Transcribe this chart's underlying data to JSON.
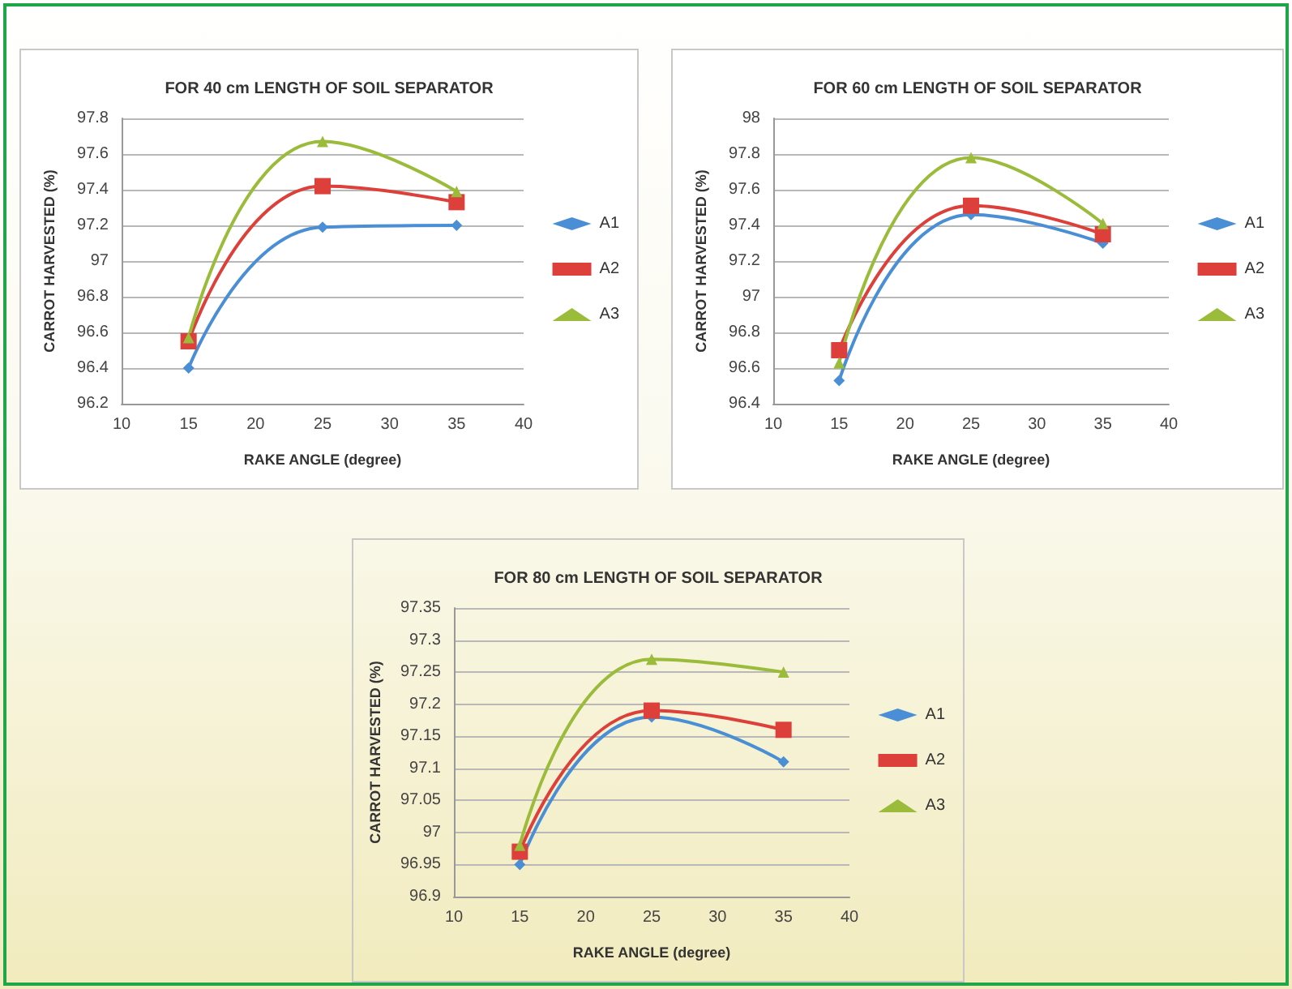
{
  "chart_data": [
    {
      "type": "line",
      "title": "FOR 40 cm LENGTH OF SOIL SEPARATOR",
      "xlabel": "RAKE ANGLE (degree)",
      "ylabel": "CARROT HARVESTED (%)",
      "x": [
        15,
        25,
        35
      ],
      "xlim": [
        10,
        40
      ],
      "xticks": [
        10,
        15,
        20,
        25,
        30,
        35,
        40
      ],
      "ylim": [
        96.2,
        97.8
      ],
      "yticks": [
        96.2,
        96.4,
        96.6,
        96.8,
        97,
        97.2,
        97.4,
        97.6,
        97.8
      ],
      "grid": "y",
      "legend": "right",
      "series": [
        {
          "name": "A1",
          "color": "#4a8fd6",
          "marker": "diamond",
          "values": [
            96.4,
            97.19,
            97.2
          ]
        },
        {
          "name": "A2",
          "color": "#dd3f3a",
          "marker": "square",
          "values": [
            96.55,
            97.42,
            97.33
          ]
        },
        {
          "name": "A3",
          "color": "#9bbb3b",
          "marker": "triangle",
          "values": [
            96.57,
            97.67,
            97.39
          ]
        }
      ]
    },
    {
      "type": "line",
      "title": "FOR 60 cm LENGTH OF SOIL SEPARATOR",
      "xlabel": "RAKE ANGLE (degree)",
      "ylabel": "CARROT HARVESTED (%)",
      "x": [
        15,
        25,
        35
      ],
      "xlim": [
        10,
        40
      ],
      "xticks": [
        10,
        15,
        20,
        25,
        30,
        35,
        40
      ],
      "ylim": [
        96.4,
        98
      ],
      "yticks": [
        96.4,
        96.6,
        96.8,
        97,
        97.2,
        97.4,
        97.6,
        97.8,
        98
      ],
      "grid": "y",
      "legend": "right",
      "series": [
        {
          "name": "A1",
          "color": "#4a8fd6",
          "marker": "diamond",
          "values": [
            96.53,
            97.46,
            97.3
          ]
        },
        {
          "name": "A2",
          "color": "#dd3f3a",
          "marker": "square",
          "values": [
            96.7,
            97.51,
            97.35
          ]
        },
        {
          "name": "A3",
          "color": "#9bbb3b",
          "marker": "triangle",
          "values": [
            96.63,
            97.78,
            97.41
          ]
        }
      ]
    },
    {
      "type": "line",
      "title": "FOR 80 cm LENGTH OF SOIL SEPARATOR",
      "xlabel": "RAKE ANGLE (degree)",
      "ylabel": "CARROT HARVESTED (%)",
      "x": [
        15,
        25,
        35
      ],
      "xlim": [
        10,
        40
      ],
      "xticks": [
        10,
        15,
        20,
        25,
        30,
        35,
        40
      ],
      "ylim": [
        96.9,
        97.35
      ],
      "yticks": [
        96.9,
        96.95,
        97,
        97.05,
        97.1,
        97.15,
        97.2,
        97.25,
        97.3,
        97.35
      ],
      "grid": "y",
      "legend": "right",
      "series": [
        {
          "name": "A1",
          "color": "#4a8fd6",
          "marker": "diamond",
          "values": [
            96.95,
            97.18,
            97.11
          ]
        },
        {
          "name": "A2",
          "color": "#dd3f3a",
          "marker": "square",
          "values": [
            96.97,
            97.19,
            97.16
          ]
        },
        {
          "name": "A3",
          "color": "#9bbb3b",
          "marker": "triangle",
          "values": [
            96.98,
            97.27,
            97.25
          ]
        }
      ]
    }
  ]
}
